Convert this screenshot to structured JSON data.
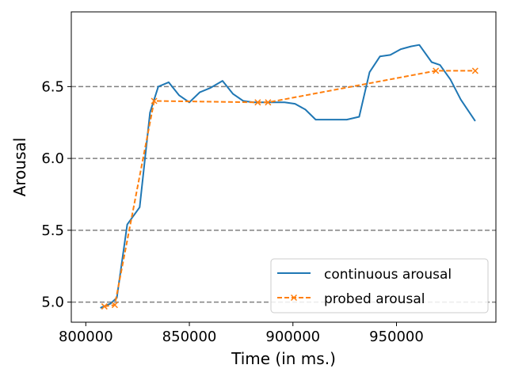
{
  "chart_data": {
    "type": "line",
    "xlabel": "Time (in ms.)",
    "ylabel": "Arousal",
    "xlim": [
      793000,
      998000
    ],
    "ylim": [
      4.86,
      7.02
    ],
    "xticks": [
      800000,
      850000,
      900000,
      950000
    ],
    "xtick_labels": [
      "800000",
      "850000",
      "900000",
      "950000"
    ],
    "yticks": [
      5.0,
      5.5,
      6.0,
      6.5
    ],
    "ytick_labels": [
      "5.0",
      "5.5",
      "6.0",
      "6.5"
    ],
    "grid": "horizontal dashed at y ticks",
    "legend_position": "lower-right",
    "series": [
      {
        "name": "continuous arousal",
        "color": "#1f77b4",
        "style": "solid",
        "marker": "none",
        "x": [
          807000,
          812000,
          815000,
          820000,
          826000,
          831000,
          835000,
          840000,
          845000,
          850000,
          855000,
          860000,
          866000,
          871000,
          876000,
          881000,
          886000,
          891000,
          896000,
          901000,
          906000,
          911000,
          916000,
          921000,
          926000,
          932000,
          937000,
          942000,
          947000,
          952000,
          957000,
          961000,
          967000,
          971000,
          976000,
          981000,
          988000
        ],
        "y": [
          4.96,
          4.99,
          5.03,
          5.54,
          5.66,
          6.32,
          6.5,
          6.53,
          6.44,
          6.39,
          6.46,
          6.49,
          6.54,
          6.45,
          6.4,
          6.39,
          6.39,
          6.39,
          6.39,
          6.38,
          6.34,
          6.27,
          6.27,
          6.27,
          6.27,
          6.29,
          6.6,
          6.71,
          6.72,
          6.76,
          6.78,
          6.79,
          6.67,
          6.65,
          6.55,
          6.41,
          6.26
        ]
      },
      {
        "name": "probed arousal",
        "color": "#ff7f0e",
        "style": "dashed",
        "marker": "x",
        "x": [
          809000,
          814000,
          833000,
          883000,
          888000,
          969000,
          988000
        ],
        "y": [
          4.97,
          4.98,
          6.4,
          6.39,
          6.39,
          6.61,
          6.61
        ]
      }
    ]
  }
}
